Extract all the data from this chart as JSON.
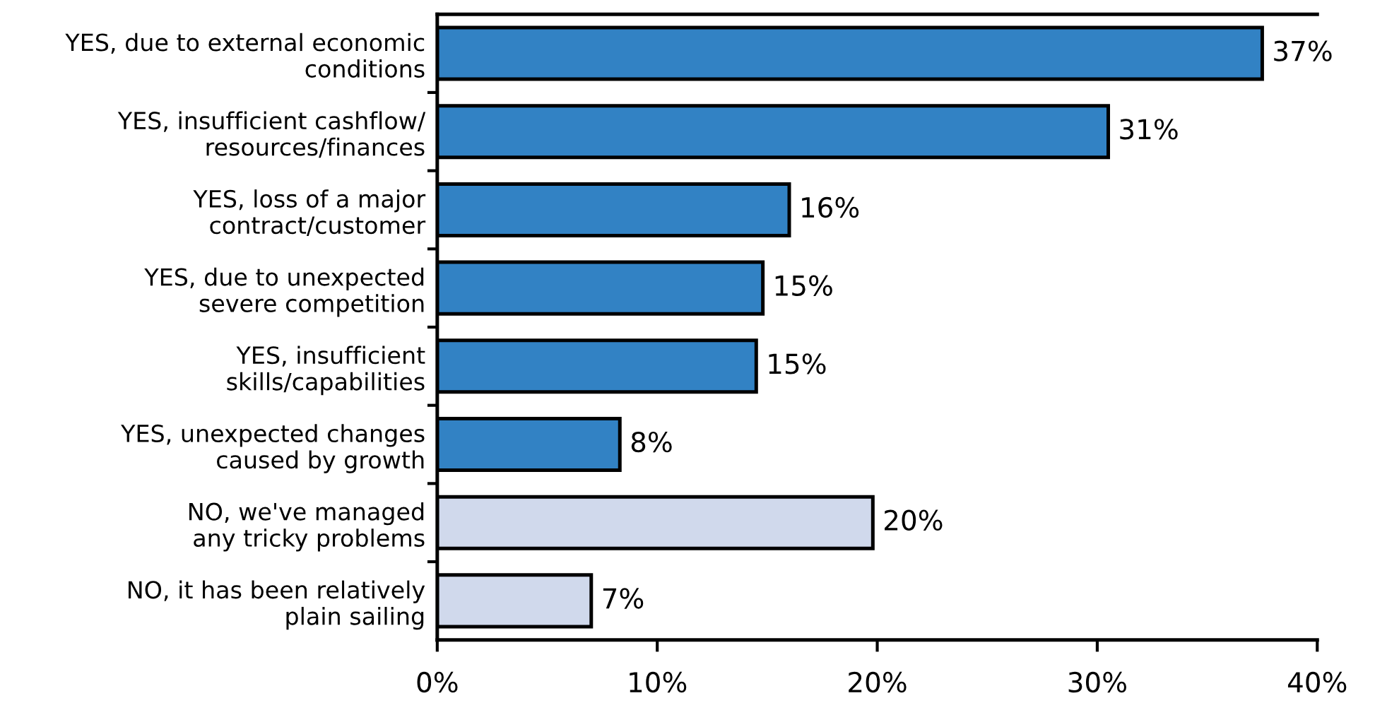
{
  "chart_data": {
    "type": "bar",
    "orientation": "horizontal",
    "categories": [
      "YES, due to external economic\nconditions",
      "YES, insufficient cashflow/\nresources/finances",
      "YES, loss of a major\ncontract/customer",
      "YES, due to unexpected\nsevere competition",
      "YES, insufficient\nskills/capabilities",
      "YES, unexpected changes\ncaused by growth",
      "NO, we've managed\nany tricky problems",
      "NO, it has been relatively\nplain sailing"
    ],
    "values": [
      37.5,
      30.5,
      16,
      14.8,
      14.5,
      8.3,
      19.8,
      7
    ],
    "colors": [
      "#3282c4",
      "#3282c4",
      "#3282c4",
      "#3282c4",
      "#3282c4",
      "#3282c4",
      "#d0d9ec",
      "#d0d9ec"
    ],
    "value_labels": [
      "37%",
      "31%",
      "16%",
      "15%",
      "15%",
      "8%",
      "20%",
      "7%"
    ],
    "xlim": [
      0,
      40
    ],
    "xticks": [
      {
        "value": 0,
        "label": "0%"
      },
      {
        "value": 10,
        "label": "10%"
      },
      {
        "value": 20,
        "label": "20%"
      },
      {
        "value": 30,
        "label": "30%"
      },
      {
        "value": 40,
        "label": "40%"
      }
    ],
    "grid": false
  }
}
